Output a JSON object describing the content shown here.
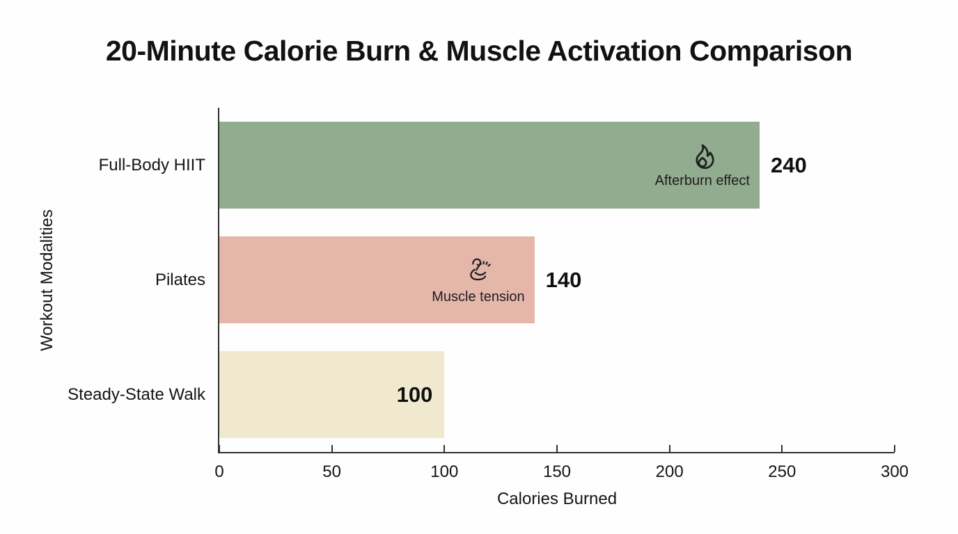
{
  "chart_data": {
    "type": "bar",
    "orientation": "horizontal",
    "title": "20-Minute Calorie Burn & Muscle Activation Comparison",
    "xlabel": "Calories Burned",
    "ylabel": "Workout Modalities",
    "categories": [
      "Full-Body HIIT",
      "Pilates",
      "Steady-State Walk"
    ],
    "values": [
      240,
      140,
      100
    ],
    "xlim": [
      0,
      300
    ],
    "xticks": [
      0,
      50,
      100,
      150,
      200,
      250,
      300
    ],
    "bar_colors": [
      "#92ac8f",
      "#e5b7ab",
      "#f1e9cf"
    ],
    "axis_color": "#2e2e2e",
    "text_color": "#141414",
    "grid": false,
    "legend": false,
    "value_label_placement": [
      "outside",
      "outside",
      "inside"
    ],
    "annotations": [
      {
        "bar": 0,
        "icon": "flame-icon",
        "label": "Afterburn effect"
      },
      {
        "bar": 1,
        "icon": "flexed-biceps-icon",
        "label": "Muscle tension"
      }
    ]
  }
}
